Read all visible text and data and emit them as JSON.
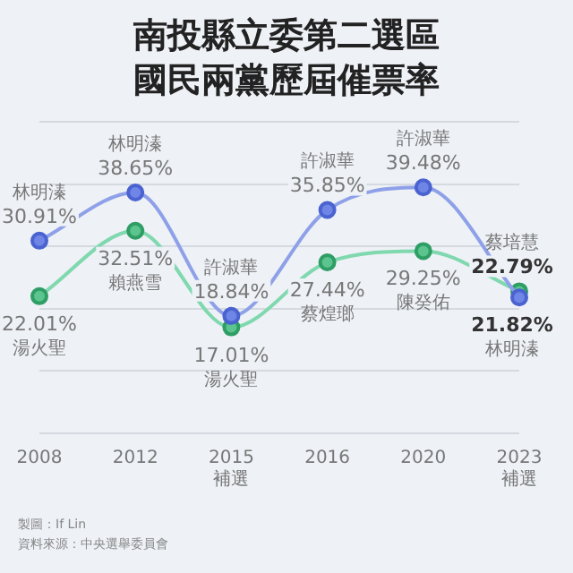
{
  "chart_data": {
    "type": "line",
    "title": "南投縣立委第二選區國民兩黨歷屆催票率",
    "categories": [
      "2008",
      "2012",
      "2015\n補選",
      "2016",
      "2020",
      "2023\n補選"
    ],
    "series": [
      {
        "color": "#4a63d0",
        "values": [
          30.91,
          38.65,
          18.84,
          35.85,
          39.48,
          21.82
        ],
        "value_labels": [
          "30.91%",
          "38.65%",
          "18.84%",
          "35.85%",
          "39.48%",
          "21.82%"
        ]
      },
      {
        "color": "#2e9e65",
        "values": [
          22.01,
          32.51,
          17.01,
          27.44,
          29.25,
          22.79
        ],
        "value_labels": [
          "22.01%",
          "32.51%",
          "17.01%",
          "27.44%",
          "29.25%",
          "22.79%"
        ]
      }
    ],
    "ylim": [
      0,
      50
    ],
    "yticks": [
      {
        "value": 0,
        "label": null
      },
      {
        "value": 10,
        "label": null
      },
      {
        "value": 20,
        "label": null
      },
      {
        "value": 30,
        "label": null
      },
      {
        "value": 40,
        "label": null
      },
      {
        "value": 50,
        "label": null
      }
    ],
    "tick_labels": "x",
    "grid": "y",
    "legend": false,
    "marker": "circle",
    "line_style": "solid",
    "annotations": [
      {
        "text": "林明溱",
        "x": "2008",
        "y": 30.91
      },
      {
        "text": "林明溱",
        "x": "2012",
        "y": 38.65
      },
      {
        "text": "許淑華",
        "x": "2015\n補選",
        "y": 18.84
      },
      {
        "text": "許淑華",
        "x": "2016",
        "y": 35.85
      },
      {
        "text": "許淑華",
        "x": "2020",
        "y": 39.48
      },
      {
        "text": "林明溱",
        "x": "2023\n補選",
        "y": 21.82
      },
      {
        "text": "湯火聖",
        "x": "2008",
        "y": 22.01
      },
      {
        "text": "賴燕雪",
        "x": "2012",
        "y": 32.51
      },
      {
        "text": "湯火聖",
        "x": "2015\n補選",
        "y": 17.01
      },
      {
        "text": "蔡煌瑯",
        "x": "2016",
        "y": 27.44
      },
      {
        "text": "陳癸佑",
        "x": "2020",
        "y": 29.25
      },
      {
        "text": "蔡培慧",
        "x": "2023\n補選",
        "y": 22.79
      },
      "製圖：If Lin",
      "資料來源：中央選舉委員會"
    ]
  }
}
